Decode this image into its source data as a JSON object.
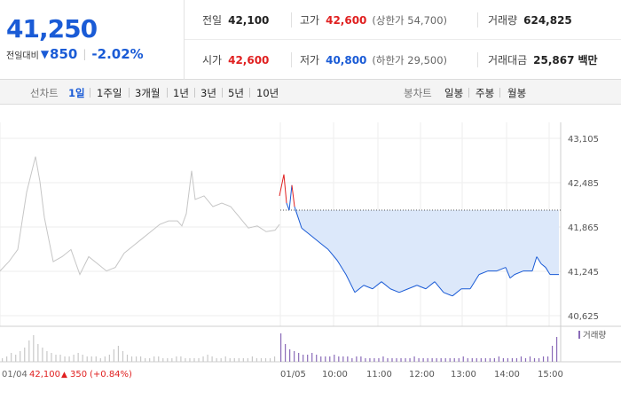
{
  "stock": {
    "price": "41,250",
    "change_label": "전일대비",
    "change_value": "850",
    "change_pct": "-2.02%",
    "up_color": "#e02020",
    "down_color": "#1a5bd6"
  },
  "stats": {
    "prev_close": {
      "label": "전일",
      "value": "42,100"
    },
    "high": {
      "label": "고가",
      "value": "42,600",
      "limit_label": "(상한가 54,700)"
    },
    "volume": {
      "label": "거래량",
      "value": "624,825"
    },
    "open": {
      "label": "시가",
      "value": "42,600"
    },
    "low": {
      "label": "저가",
      "value": "40,800",
      "limit_label": "(하한가 29,500)"
    },
    "turnover": {
      "label": "거래대금",
      "value": "25,867",
      "unit": "백만"
    }
  },
  "toolbar": {
    "line_chart_label": "선차트",
    "periods": [
      "1일",
      "1주일",
      "3개월",
      "1년",
      "3년",
      "5년",
      "10년"
    ],
    "active_period": "1일",
    "candle_label": "봉차트",
    "candle_periods": [
      "일봉",
      "주봉",
      "월봉"
    ]
  },
  "chart_data": {
    "type": "line",
    "y_ticks": [
      "43,105",
      "42,485",
      "41,865",
      "41,245",
      "40,625"
    ],
    "ylim": [
      40625,
      43105
    ],
    "prev_close_value": 42100,
    "x_labels": [
      "01/04",
      "01/05",
      "10:00",
      "11:00",
      "12:00",
      "13:00",
      "14:00",
      "15:00"
    ],
    "prev_day_label": "01/04",
    "prev_day_close": "42,100",
    "prev_day_change": "350",
    "prev_day_change_pct": "(+0.84%)",
    "volume_legend": "거래량",
    "grid": true,
    "series": [
      {
        "key": "prev_day",
        "color": "#c6c6c6",
        "points": [
          [
            0,
            41250
          ],
          [
            10,
            41380
          ],
          [
            20,
            41550
          ],
          [
            30,
            42350
          ],
          [
            40,
            42850
          ],
          [
            45,
            42500
          ],
          [
            50,
            42000
          ],
          [
            60,
            41380
          ],
          [
            70,
            41450
          ],
          [
            80,
            41550
          ],
          [
            90,
            41200
          ],
          [
            100,
            41450
          ],
          [
            110,
            41350
          ],
          [
            120,
            41250
          ],
          [
            130,
            41300
          ],
          [
            140,
            41500
          ],
          [
            150,
            41600
          ],
          [
            160,
            41700
          ],
          [
            170,
            41800
          ],
          [
            180,
            41900
          ],
          [
            190,
            41950
          ],
          [
            200,
            41950
          ],
          [
            205,
            41880
          ],
          [
            210,
            42050
          ],
          [
            213,
            42350
          ],
          [
            216,
            42650
          ],
          [
            220,
            42250
          ],
          [
            230,
            42300
          ],
          [
            240,
            42150
          ],
          [
            250,
            42200
          ],
          [
            260,
            42150
          ],
          [
            270,
            42000
          ],
          [
            280,
            41850
          ],
          [
            290,
            41880
          ],
          [
            300,
            41800
          ],
          [
            310,
            41820
          ],
          [
            315,
            41900
          ]
        ]
      },
      {
        "key": "today",
        "color": "#1a5bd6",
        "points": [
          [
            315,
            42300
          ],
          [
            320,
            42600
          ],
          [
            323,
            42200
          ],
          [
            326,
            42100
          ],
          [
            329,
            42450
          ],
          [
            332,
            42150
          ],
          [
            340,
            41850
          ],
          [
            350,
            41750
          ],
          [
            360,
            41650
          ],
          [
            370,
            41550
          ],
          [
            380,
            41400
          ],
          [
            390,
            41200
          ],
          [
            400,
            40950
          ],
          [
            410,
            41050
          ],
          [
            420,
            41000
          ],
          [
            430,
            41100
          ],
          [
            440,
            41000
          ],
          [
            450,
            40950
          ],
          [
            460,
            41000
          ],
          [
            470,
            41050
          ],
          [
            480,
            41000
          ],
          [
            490,
            41100
          ],
          [
            500,
            40950
          ],
          [
            510,
            40900
          ],
          [
            520,
            41000
          ],
          [
            530,
            41000
          ],
          [
            540,
            41200
          ],
          [
            550,
            41250
          ],
          [
            560,
            41250
          ],
          [
            570,
            41300
          ],
          [
            575,
            41150
          ],
          [
            580,
            41200
          ],
          [
            590,
            41250
          ],
          [
            600,
            41250
          ],
          [
            605,
            41450
          ],
          [
            610,
            41350
          ],
          [
            615,
            41300
          ],
          [
            620,
            41200
          ],
          [
            630,
            41200
          ]
        ]
      }
    ],
    "volume_prev": [
      2,
      3,
      5,
      4,
      6,
      8,
      12,
      15,
      10,
      8,
      6,
      5,
      4,
      4,
      3,
      3,
      4,
      5,
      4,
      3,
      3,
      3,
      2,
      3,
      4,
      7,
      9,
      6,
      4,
      3,
      3,
      3,
      2,
      2,
      3,
      3,
      2,
      2,
      2,
      3,
      3,
      2,
      2,
      2,
      2,
      3,
      4,
      3,
      2,
      2,
      3,
      2,
      2,
      2,
      2,
      2,
      3,
      2,
      2,
      2,
      2,
      3
    ],
    "volume_today": [
      16,
      10,
      7,
      6,
      5,
      4,
      4,
      5,
      4,
      3,
      3,
      3,
      4,
      3,
      3,
      3,
      2,
      3,
      3,
      2,
      2,
      2,
      2,
      3,
      2,
      2,
      2,
      2,
      2,
      2,
      3,
      2,
      2,
      2,
      2,
      2,
      2,
      2,
      2,
      2,
      2,
      3,
      2,
      2,
      2,
      2,
      2,
      2,
      2,
      3,
      2,
      2,
      2,
      2,
      3,
      2,
      3,
      2,
      2,
      3,
      3,
      9,
      14
    ]
  }
}
